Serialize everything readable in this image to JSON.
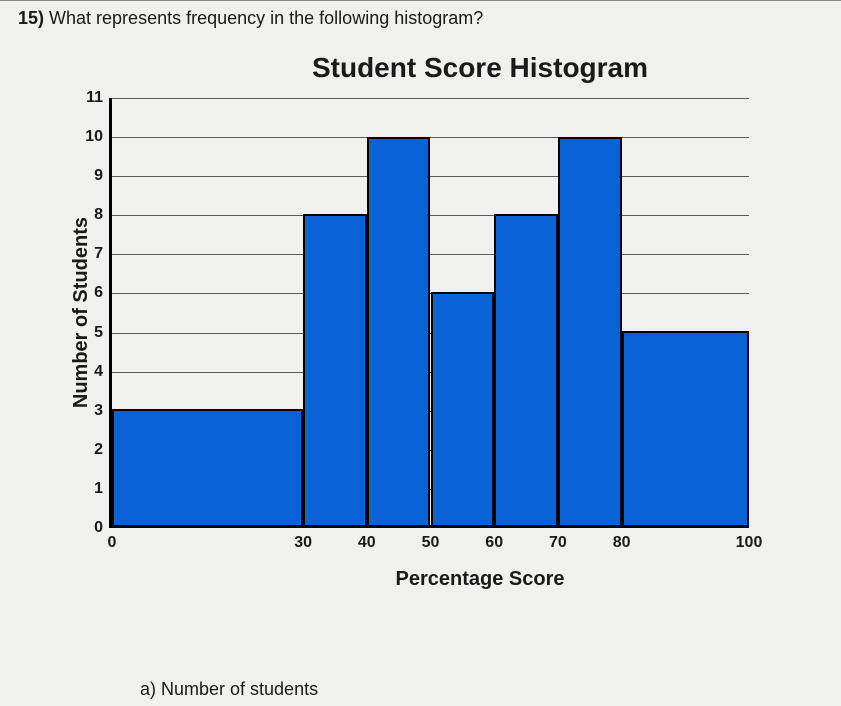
{
  "question": {
    "number": "15)",
    "text": "What represents frequency in the following histogram?"
  },
  "chart": {
    "type": "histogram",
    "title": "Student Score Histogram",
    "title_fontsize": 28,
    "ylabel": "Number of Students",
    "xlabel": "Percentage Score",
    "label_fontsize": 20,
    "ylim": [
      0,
      11
    ],
    "ytick_step": 1,
    "yticks": [
      0,
      1,
      2,
      3,
      4,
      5,
      6,
      7,
      8,
      9,
      10,
      11
    ],
    "xlim": [
      0,
      100
    ],
    "xticks": [
      0,
      30,
      40,
      50,
      60,
      70,
      80,
      100
    ],
    "bins": [
      {
        "from": 0,
        "to": 30,
        "value": 3
      },
      {
        "from": 30,
        "to": 40,
        "value": 8
      },
      {
        "from": 40,
        "to": 50,
        "value": 10
      },
      {
        "from": 50,
        "to": 60,
        "value": 6
      },
      {
        "from": 60,
        "to": 70,
        "value": 8
      },
      {
        "from": 70,
        "to": 80,
        "value": 10
      },
      {
        "from": 80,
        "to": 100,
        "value": 5
      }
    ],
    "bar_color": "#0a63d6",
    "bar_border_color": "#000000",
    "bar_border_width": 2,
    "background_color": "#f0f0ee",
    "grid_color": "#5a5a5a",
    "axis_color": "#000000",
    "tick_fontsize": 16,
    "inner_width": 640,
    "inner_height": 430
  },
  "answer": {
    "a": "a) Number of students"
  }
}
